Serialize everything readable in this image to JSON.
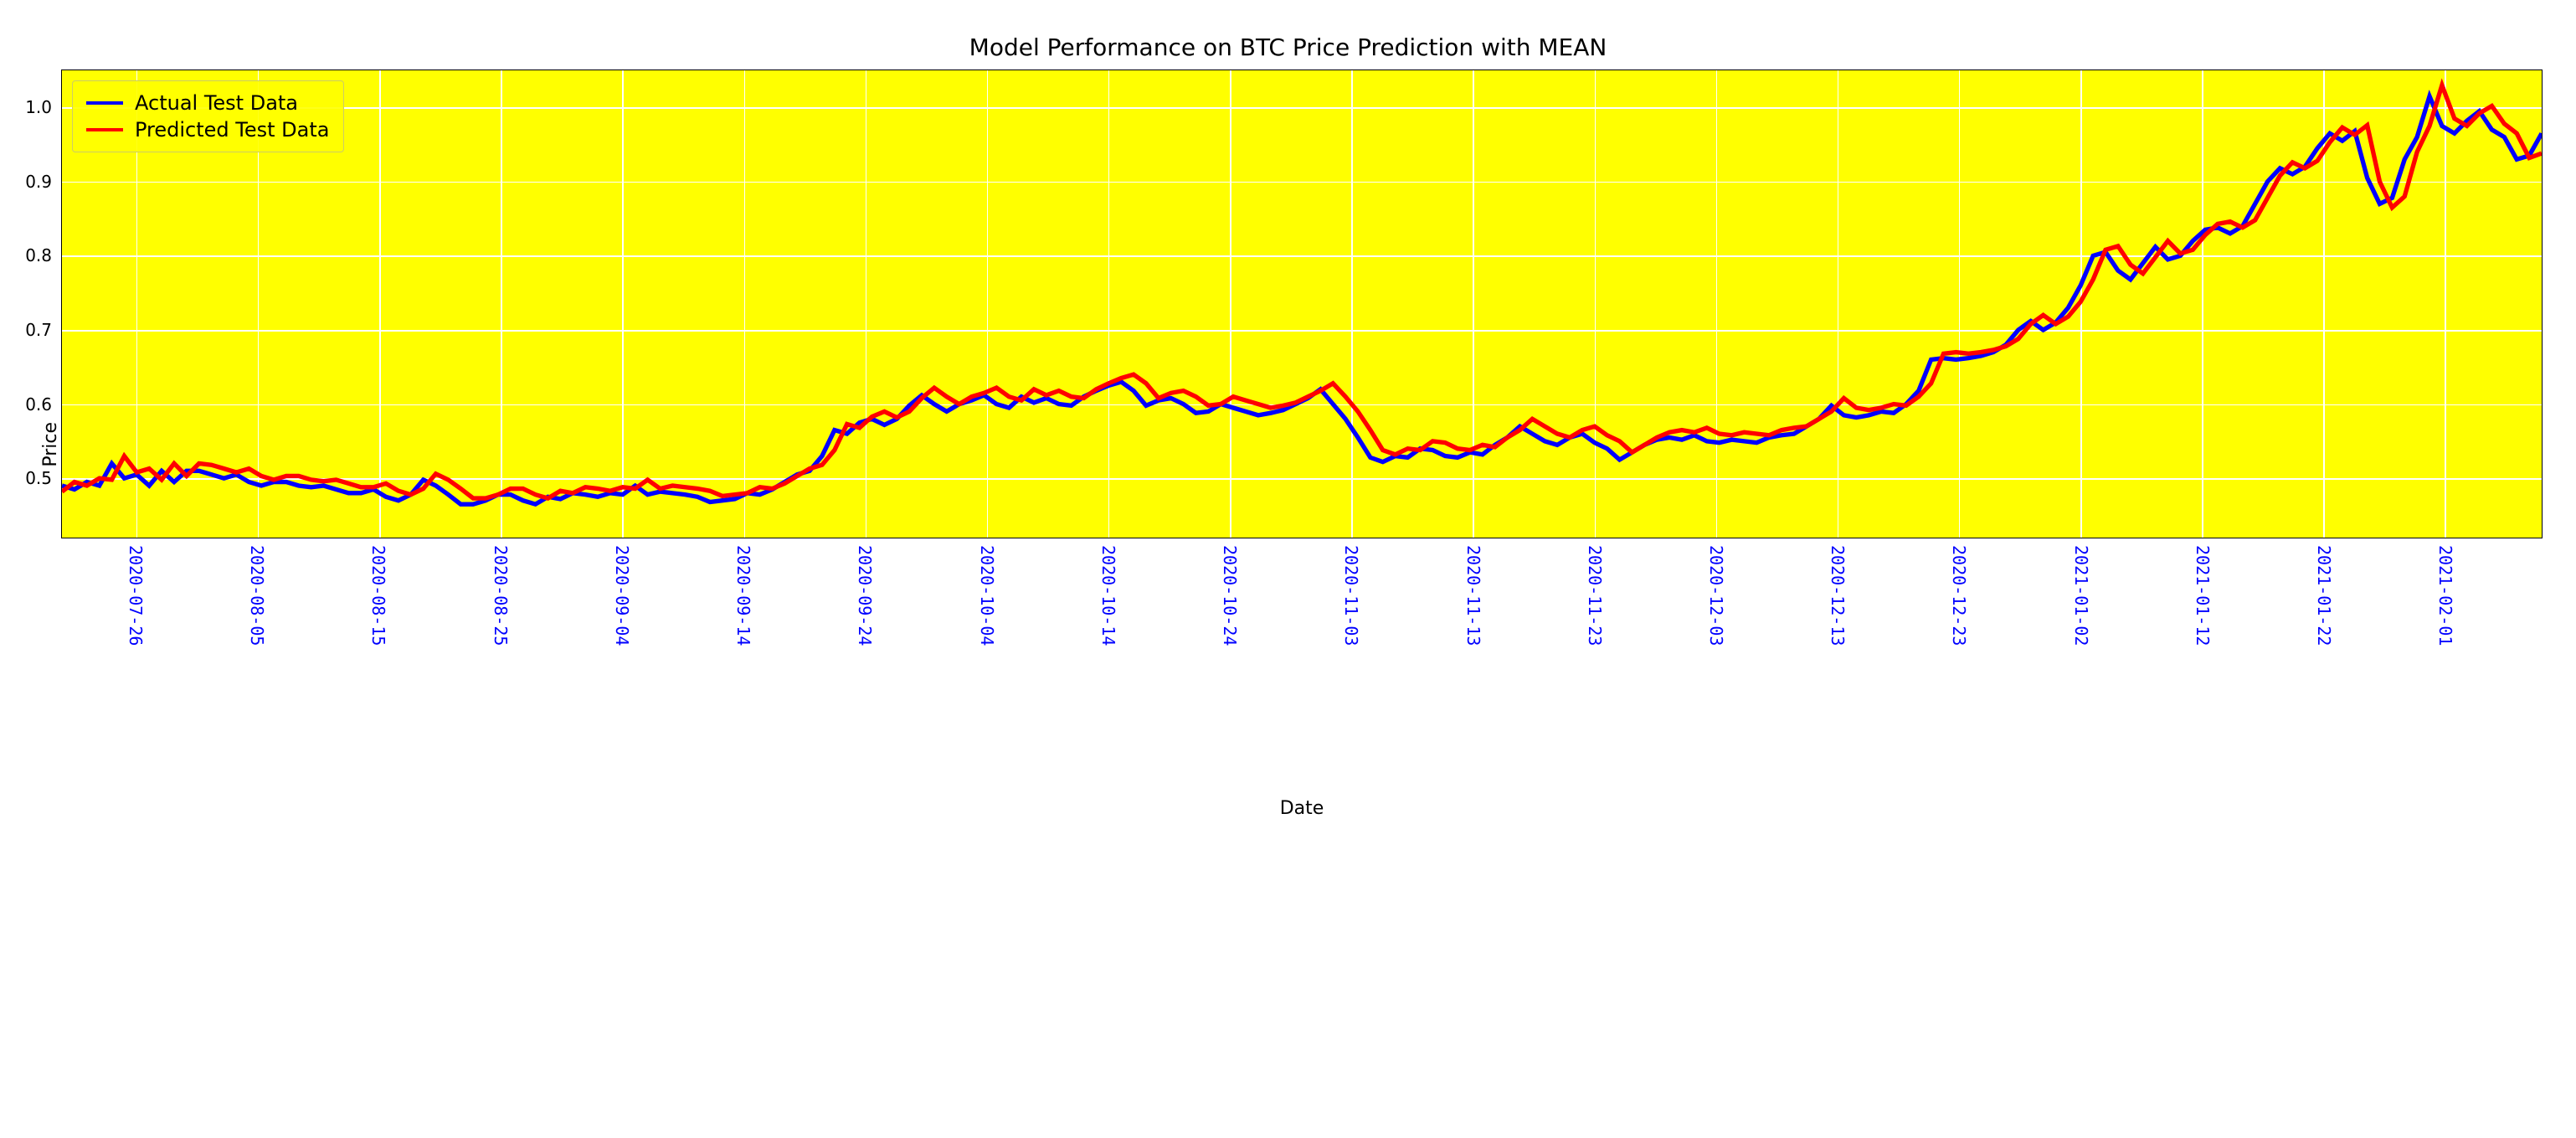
{
  "chart": {
    "type": "line",
    "title": "Model Performance on BTC Price Prediction with MEAN",
    "title_fontsize": 28,
    "xlabel": "Date",
    "ylabel": "Price",
    "label_fontsize": 22,
    "background_color": "#ffff00",
    "grid_color": "#ffffff",
    "border_color": "#000000",
    "tick_fontsize": 20,
    "x_tick_color": "#0000ff",
    "y_tick_color": "#000000",
    "ylim": [
      0.42,
      1.05
    ],
    "yticks": [
      0.5,
      0.6,
      0.7,
      0.8,
      0.9,
      1.0
    ],
    "x_tick_labels": [
      "2020-07-26",
      "2020-08-05",
      "2020-08-15",
      "2020-08-25",
      "2020-09-04",
      "2020-09-14",
      "2020-09-24",
      "2020-10-04",
      "2020-10-14",
      "2020-10-24",
      "2020-11-03",
      "2020-11-13",
      "2020-11-23",
      "2020-12-03",
      "2020-12-13",
      "2020-12-23",
      "2021-01-02",
      "2021-01-12",
      "2021-01-22",
      "2021-02-01"
    ],
    "x_tick_positions_pct": [
      3.0,
      7.9,
      12.8,
      17.7,
      22.6,
      27.5,
      32.4,
      37.3,
      42.2,
      47.1,
      52.0,
      56.9,
      61.8,
      66.7,
      71.6,
      76.5,
      81.4,
      86.3,
      91.2,
      96.1
    ],
    "legend": {
      "position": "upper-left",
      "fontsize": 24,
      "items": [
        {
          "label": "Actual Test Data",
          "color": "#0000ff"
        },
        {
          "label": "Predicted Test Data",
          "color": "#ff0000"
        }
      ]
    },
    "line_width": 3,
    "n_points": 200,
    "series": [
      {
        "name": "actual",
        "color": "#0000ff",
        "y": [
          0.49,
          0.485,
          0.495,
          0.49,
          0.52,
          0.5,
          0.505,
          0.49,
          0.51,
          0.495,
          0.51,
          0.51,
          0.505,
          0.5,
          0.505,
          0.495,
          0.49,
          0.495,
          0.495,
          0.49,
          0.488,
          0.49,
          0.485,
          0.48,
          0.48,
          0.485,
          0.475,
          0.47,
          0.478,
          0.498,
          0.49,
          0.478,
          0.465,
          0.465,
          0.47,
          0.478,
          0.478,
          0.47,
          0.465,
          0.475,
          0.472,
          0.48,
          0.478,
          0.475,
          0.48,
          0.478,
          0.49,
          0.478,
          0.482,
          0.48,
          0.478,
          0.475,
          0.468,
          0.47,
          0.472,
          0.48,
          0.478,
          0.485,
          0.495,
          0.505,
          0.51,
          0.53,
          0.565,
          0.56,
          0.575,
          0.58,
          0.572,
          0.58,
          0.598,
          0.612,
          0.6,
          0.59,
          0.6,
          0.605,
          0.612,
          0.6,
          0.595,
          0.61,
          0.602,
          0.608,
          0.6,
          0.598,
          0.61,
          0.618,
          0.625,
          0.63,
          0.618,
          0.598,
          0.605,
          0.608,
          0.6,
          0.588,
          0.59,
          0.6,
          0.595,
          0.59,
          0.585,
          0.588,
          0.592,
          0.6,
          0.608,
          0.62,
          0.6,
          0.58,
          0.555,
          0.528,
          0.522,
          0.53,
          0.528,
          0.54,
          0.538,
          0.53,
          0.528,
          0.535,
          0.532,
          0.545,
          0.555,
          0.57,
          0.56,
          0.55,
          0.545,
          0.555,
          0.56,
          0.548,
          0.54,
          0.525,
          0.535,
          0.545,
          0.552,
          0.555,
          0.552,
          0.558,
          0.55,
          0.548,
          0.552,
          0.55,
          0.548,
          0.555,
          0.558,
          0.56,
          0.57,
          0.58,
          0.598,
          0.585,
          0.582,
          0.585,
          0.59,
          0.588,
          0.6,
          0.618,
          0.66,
          0.662,
          0.66,
          0.662,
          0.665,
          0.67,
          0.68,
          0.7,
          0.712,
          0.7,
          0.71,
          0.73,
          0.76,
          0.8,
          0.805,
          0.78,
          0.768,
          0.79,
          0.812,
          0.795,
          0.8,
          0.82,
          0.835,
          0.838,
          0.83,
          0.84,
          0.87,
          0.9,
          0.918,
          0.91,
          0.92,
          0.945,
          0.965,
          0.955,
          0.968,
          0.905,
          0.87,
          0.878,
          0.93,
          0.96,
          1.015,
          0.975,
          0.965,
          0.982,
          0.995,
          0.97,
          0.96,
          0.93,
          0.935,
          0.965
        ]
      },
      {
        "name": "predicted",
        "color": "#ff0000",
        "y": [
          0.482,
          0.495,
          0.49,
          0.5,
          0.498,
          0.53,
          0.508,
          0.513,
          0.498,
          0.52,
          0.503,
          0.52,
          0.518,
          0.513,
          0.508,
          0.513,
          0.503,
          0.498,
          0.503,
          0.503,
          0.498,
          0.496,
          0.498,
          0.493,
          0.488,
          0.488,
          0.493,
          0.483,
          0.478,
          0.486,
          0.506,
          0.498,
          0.486,
          0.473,
          0.473,
          0.478,
          0.486,
          0.486,
          0.478,
          0.473,
          0.483,
          0.48,
          0.488,
          0.486,
          0.483,
          0.488,
          0.486,
          0.498,
          0.486,
          0.49,
          0.488,
          0.486,
          0.483,
          0.476,
          0.478,
          0.48,
          0.488,
          0.486,
          0.493,
          0.503,
          0.513,
          0.518,
          0.538,
          0.573,
          0.568,
          0.583,
          0.59,
          0.582,
          0.59,
          0.608,
          0.622,
          0.61,
          0.6,
          0.61,
          0.615,
          0.622,
          0.61,
          0.605,
          0.62,
          0.612,
          0.618,
          0.61,
          0.608,
          0.62,
          0.628,
          0.635,
          0.64,
          0.628,
          0.608,
          0.615,
          0.618,
          0.61,
          0.598,
          0.6,
          0.61,
          0.605,
          0.6,
          0.595,
          0.598,
          0.602,
          0.61,
          0.618,
          0.628,
          0.61,
          0.59,
          0.565,
          0.538,
          0.532,
          0.54,
          0.538,
          0.55,
          0.548,
          0.54,
          0.538,
          0.545,
          0.542,
          0.555,
          0.565,
          0.58,
          0.57,
          0.56,
          0.555,
          0.565,
          0.57,
          0.558,
          0.55,
          0.535,
          0.545,
          0.555,
          0.562,
          0.565,
          0.562,
          0.568,
          0.56,
          0.558,
          0.562,
          0.56,
          0.558,
          0.565,
          0.568,
          0.57,
          0.58,
          0.59,
          0.608,
          0.595,
          0.592,
          0.595,
          0.6,
          0.598,
          0.61,
          0.628,
          0.668,
          0.67,
          0.668,
          0.67,
          0.673,
          0.678,
          0.688,
          0.708,
          0.72,
          0.708,
          0.718,
          0.738,
          0.768,
          0.808,
          0.813,
          0.788,
          0.776,
          0.798,
          0.82,
          0.803,
          0.808,
          0.828,
          0.843,
          0.846,
          0.838,
          0.848,
          0.878,
          0.908,
          0.926,
          0.918,
          0.928,
          0.953,
          0.973,
          0.963,
          0.976,
          0.9,
          0.865,
          0.88,
          0.94,
          0.975,
          1.03,
          0.985,
          0.975,
          0.992,
          1.002,
          0.978,
          0.965,
          0.932,
          0.938
        ]
      }
    ]
  }
}
